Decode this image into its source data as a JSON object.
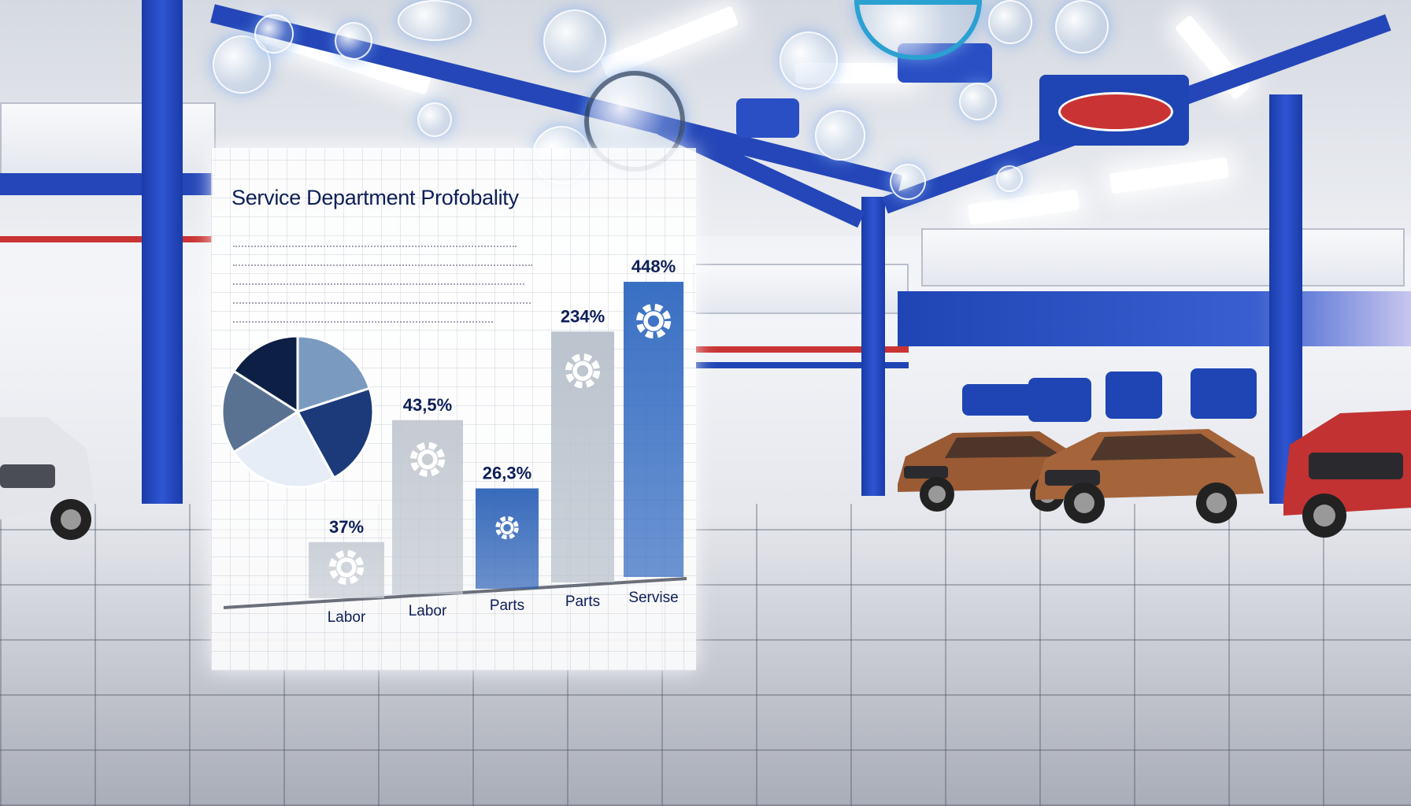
{
  "chart_data": {
    "type": "bar",
    "title": "Service Department Profobality",
    "categories": [
      "Labor",
      "Labor",
      "Parts",
      "Parts",
      "Servise"
    ],
    "values": [
      37,
      43.5,
      26.3,
      234,
      448
    ],
    "value_labels": [
      "37%",
      "43,5%",
      "26,3%",
      "234%",
      "448%"
    ],
    "bar_colors": [
      "#c9ced6",
      "#c3c8d1",
      "#2e63b8",
      "#b8c0cb",
      "#2f68c0"
    ],
    "bar_heights_fraction": [
      0.19,
      0.59,
      0.34,
      0.85,
      1.0
    ],
    "ylim": [
      0,
      448
    ],
    "grid": true,
    "pie": {
      "slices": [
        20,
        22,
        24,
        18,
        16
      ],
      "colors": [
        "#7a9bbf",
        "#1c3a7a",
        "#e6edf7",
        "#5a7292",
        "#0d1f45"
      ]
    }
  },
  "colors": {
    "brand_blue": "#1f45b5",
    "accent_red": "#c93333",
    "title_navy": "#0d1f57"
  }
}
